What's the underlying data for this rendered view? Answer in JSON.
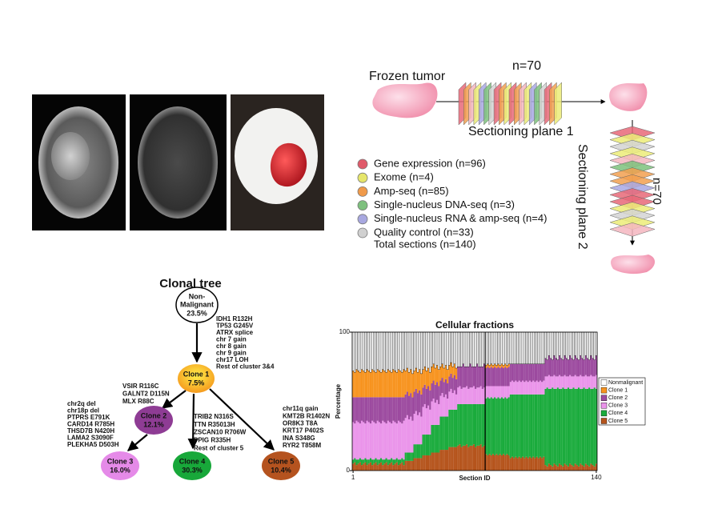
{
  "schematic": {
    "frozen_tumor": "Frozen tumor",
    "n_plane1": "n=70",
    "plane1": "Sectioning plane 1",
    "plane2": "Sectioning plane 2",
    "n_plane2": "n=70",
    "legend": [
      "Gene expression (n=96)",
      "Exome (n=4)",
      "Amp-seq (n=85)",
      "Single-nucleus DNA-seq (n=3)",
      "Single-nucleus RNA & amp-seq (n=4)",
      "Quality control (n=33)"
    ],
    "total": "Total sections (n=140)"
  },
  "clonal_tree": {
    "title": "Clonal tree",
    "nodes": [
      {
        "lines": [
          "Non-",
          "Malignant"
        ],
        "fraction": "23.5%"
      },
      {
        "lines": [
          "Clone 1"
        ],
        "fraction": "7.5%"
      },
      {
        "lines": [
          "Clone 2"
        ],
        "fraction": "12.1%"
      },
      {
        "lines": [
          "Clone 3"
        ],
        "fraction": "16.0%"
      },
      {
        "lines": [
          "Clone 4"
        ],
        "fraction": "30.3%"
      },
      {
        "lines": [
          "Clone 5"
        ],
        "fraction": "10.4%"
      }
    ],
    "mutations": [
      [
        "IDH1 R132H",
        "TP53 G245V",
        "ATRX splice",
        "chr 7 gain",
        "chr 8 gain",
        "chr 9 gain",
        "chr17 LOH",
        "Rest of cluster 3&4"
      ],
      [
        "VSIR R116C",
        "GALNT2 D115N",
        "MLX R88C"
      ],
      [
        "chr2q del",
        "chr18p del",
        "PTPRS E791K",
        "CARD14 R785H",
        "THSD7B N420H",
        "LAMA2 S3090F",
        "PLEKHA5 D503H"
      ],
      [
        "TRIB2 N316S",
        "TTN R35013H",
        "ZSCAN10 R706W",
        "PPIG R335H",
        "Rest of cluster 5"
      ],
      [
        "chr11q gain",
        "KMT2B R1402N",
        "OR8K3 T8A",
        "KRT17 P402S",
        "INA S348G",
        "RYR2 T858M"
      ]
    ]
  },
  "chart_data": {
    "type": "stacked_bar",
    "title": "Cellular fractions",
    "x_label": "Section ID",
    "y_label": "Percentage",
    "xlim": [
      0.5,
      140.5
    ],
    "xticks": [
      1,
      140
    ],
    "ylim": [
      0,
      100
    ],
    "yticks": [
      0,
      100
    ],
    "vline": 76.5,
    "x": [
      1,
      2,
      3,
      4,
      5,
      6,
      7,
      8,
      9,
      10,
      11,
      12,
      13,
      14,
      15,
      16,
      17,
      18,
      19,
      20,
      21,
      22,
      23,
      24,
      25,
      26,
      27,
      28,
      29,
      30,
      31,
      32,
      33,
      34,
      35,
      36,
      37,
      38,
      39,
      40,
      41,
      42,
      43,
      44,
      45,
      46,
      47,
      48,
      49,
      50,
      51,
      52,
      53,
      54,
      55,
      56,
      57,
      58,
      59,
      60,
      61,
      62,
      63,
      64,
      65,
      66,
      67,
      68,
      69,
      70,
      71,
      72,
      73,
      74,
      75,
      76,
      77,
      78,
      79,
      80,
      81,
      82,
      83,
      84,
      85,
      86,
      87,
      88,
      89,
      90,
      91,
      92,
      93,
      94,
      95,
      96,
      97,
      98,
      99,
      100,
      101,
      102,
      103,
      104,
      105,
      106,
      107,
      108,
      109,
      110,
      111,
      112,
      113,
      114,
      115,
      116,
      117,
      118,
      119,
      120,
      121,
      122,
      123,
      124,
      125,
      126,
      127,
      128,
      129,
      130,
      131,
      132,
      133,
      134,
      135,
      136,
      137,
      138,
      139,
      140
    ],
    "series": [
      {
        "name": "Nonmalignant",
        "color": "#ffffff",
        "values": [
          28,
          29,
          27,
          28,
          29,
          27,
          28,
          29,
          27,
          28,
          29,
          27,
          28,
          29,
          27,
          28,
          29,
          27,
          28,
          29,
          27,
          28,
          29,
          27,
          28,
          29,
          27,
          28,
          29,
          27,
          28,
          26,
          29,
          27,
          30,
          28,
          26,
          29,
          27,
          30,
          27,
          25,
          28,
          26,
          29,
          25,
          23,
          26,
          24,
          27,
          25,
          23,
          26,
          24,
          27,
          24,
          22,
          25,
          23,
          26,
          25,
          25,
          25,
          23,
          25,
          25,
          25,
          23,
          25,
          25,
          25,
          23,
          25,
          25,
          25,
          23,
          24,
          23,
          24,
          23,
          24,
          23,
          24,
          23,
          24,
          23,
          24,
          23,
          24,
          23,
          23,
          23,
          23,
          23,
          23,
          23,
          23,
          23,
          23,
          23,
          23,
          23,
          23,
          23,
          23,
          23,
          23,
          23,
          23,
          23,
          19,
          20,
          17,
          19,
          20,
          17,
          19,
          20,
          17,
          19,
          20,
          17,
          19,
          20,
          17,
          19,
          20,
          17,
          19,
          20,
          17,
          19,
          20,
          17,
          19,
          20,
          17,
          19,
          20,
          17
        ]
      },
      {
        "name": "Clone 1",
        "color": "#f7931e",
        "values": [
          19,
          18,
          20,
          19,
          18,
          20,
          19,
          18,
          20,
          19,
          18,
          20,
          19,
          18,
          20,
          19,
          18,
          20,
          19,
          18,
          20,
          19,
          18,
          20,
          19,
          18,
          20,
          19,
          18,
          20,
          17,
          17,
          17,
          17,
          17,
          15,
          15,
          15,
          15,
          15,
          13,
          13,
          13,
          13,
          13,
          12,
          12,
          12,
          12,
          12,
          10,
          10,
          10,
          10,
          10,
          8,
          8,
          8,
          8,
          8,
          0,
          0,
          0,
          0,
          0,
          0,
          0,
          0,
          0,
          0,
          0,
          0,
          0,
          0,
          0,
          0,
          2,
          2,
          2,
          2,
          2,
          2,
          2,
          2,
          2,
          2,
          2,
          2,
          2,
          2,
          0,
          0,
          0,
          0,
          0,
          0,
          0,
          0,
          0,
          0,
          0,
          0,
          0,
          0,
          0,
          0,
          0,
          0,
          0,
          0,
          0,
          0,
          0,
          0,
          0,
          0,
          0,
          0,
          0,
          0,
          0,
          0,
          0,
          0,
          0,
          0,
          0,
          0,
          0,
          0,
          0,
          0,
          0,
          0,
          0,
          0,
          0,
          0,
          0,
          0
        ]
      },
      {
        "name": "Clone 2",
        "color": "#9c4a9f",
        "values": [
          18,
          19,
          17,
          18,
          19,
          17,
          18,
          19,
          17,
          18,
          19,
          17,
          18,
          19,
          17,
          18,
          19,
          17,
          18,
          19,
          17,
          18,
          19,
          17,
          18,
          19,
          17,
          18,
          19,
          17,
          17,
          17,
          17,
          17,
          17,
          16,
          16,
          16,
          16,
          16,
          14,
          14,
          14,
          14,
          14,
          13,
          13,
          13,
          13,
          13,
          11,
          11,
          11,
          11,
          11,
          11,
          11,
          11,
          11,
          11,
          15,
          14,
          16,
          17,
          15,
          14,
          16,
          17,
          15,
          14,
          16,
          17,
          15,
          14,
          16,
          17,
          13,
          14,
          13,
          14,
          13,
          14,
          13,
          14,
          13,
          14,
          13,
          14,
          13,
          14,
          13,
          12,
          13,
          12,
          13,
          12,
          13,
          12,
          13,
          12,
          13,
          12,
          13,
          12,
          13,
          12,
          13,
          12,
          13,
          12,
          13,
          12,
          14,
          13,
          12,
          14,
          13,
          12,
          14,
          13,
          12,
          14,
          13,
          12,
          14,
          13,
          12,
          14,
          13,
          12,
          14,
          13,
          12,
          14,
          13,
          12,
          14,
          13,
          12,
          14
        ]
      },
      {
        "name": "Clone 3",
        "color": "#ea94ea",
        "values": [
          27,
          25,
          28,
          27,
          25,
          28,
          27,
          25,
          28,
          27,
          25,
          28,
          27,
          25,
          28,
          27,
          25,
          28,
          27,
          25,
          28,
          27,
          25,
          28,
          27,
          25,
          28,
          27,
          25,
          28,
          25,
          27,
          24,
          26,
          23,
          22,
          24,
          21,
          23,
          20,
          20,
          22,
          19,
          21,
          18,
          17,
          19,
          16,
          18,
          15,
          15,
          17,
          14,
          16,
          13,
          13,
          15,
          12,
          14,
          11,
          12,
          13,
          11,
          12,
          12,
          13,
          11,
          12,
          12,
          13,
          11,
          12,
          12,
          13,
          11,
          12,
          9,
          8,
          9,
          8,
          9,
          8,
          9,
          8,
          9,
          8,
          9,
          8,
          9,
          8,
          9,
          10,
          9,
          10,
          9,
          10,
          9,
          10,
          9,
          10,
          9,
          10,
          9,
          10,
          9,
          10,
          9,
          10,
          9,
          10,
          9,
          8,
          10,
          9,
          8,
          10,
          9,
          8,
          10,
          9,
          8,
          10,
          9,
          8,
          10,
          9,
          8,
          10,
          9,
          8,
          10,
          9,
          8,
          10,
          9,
          8,
          10,
          9,
          8,
          10
        ]
      },
      {
        "name": "Clone 4",
        "color": "#1aab3c",
        "values": [
          3,
          3,
          4,
          3,
          3,
          4,
          3,
          3,
          4,
          3,
          3,
          4,
          3,
          3,
          4,
          3,
          3,
          4,
          3,
          3,
          4,
          3,
          3,
          4,
          3,
          3,
          4,
          3,
          3,
          4,
          6,
          6,
          6,
          6,
          6,
          10,
          10,
          10,
          10,
          10,
          15,
          15,
          15,
          15,
          15,
          20,
          20,
          20,
          20,
          20,
          24,
          24,
          24,
          24,
          24,
          27,
          27,
          27,
          27,
          27,
          30,
          29,
          31,
          30,
          30,
          29,
          31,
          30,
          30,
          29,
          31,
          30,
          30,
          29,
          31,
          30,
          40,
          42,
          40,
          42,
          40,
          42,
          40,
          42,
          40,
          42,
          40,
          42,
          40,
          42,
          46,
          45,
          46,
          45,
          46,
          45,
          46,
          45,
          46,
          45,
          46,
          45,
          46,
          45,
          46,
          45,
          46,
          45,
          46,
          45,
          55,
          57,
          54,
          55,
          57,
          54,
          55,
          57,
          54,
          55,
          57,
          54,
          55,
          57,
          54,
          55,
          57,
          54,
          55,
          57,
          54,
          55,
          57,
          54,
          55,
          57,
          54,
          55,
          57,
          54
        ]
      },
      {
        "name": "Clone 5",
        "color": "#b5541c",
        "values": [
          5,
          6,
          4,
          5,
          6,
          4,
          5,
          6,
          4,
          5,
          6,
          4,
          5,
          6,
          4,
          5,
          6,
          4,
          5,
          6,
          4,
          5,
          6,
          4,
          5,
          6,
          4,
          5,
          6,
          4,
          7,
          7,
          7,
          7,
          7,
          9,
          9,
          9,
          9,
          9,
          11,
          11,
          11,
          11,
          11,
          13,
          13,
          13,
          13,
          13,
          15,
          15,
          15,
          15,
          15,
          17,
          17,
          17,
          17,
          17,
          18,
          19,
          17,
          18,
          18,
          19,
          17,
          18,
          18,
          19,
          17,
          18,
          18,
          19,
          17,
          18,
          12,
          11,
          12,
          11,
          12,
          11,
          12,
          11,
          12,
          11,
          12,
          11,
          12,
          11,
          9,
          10,
          9,
          10,
          9,
          10,
          9,
          10,
          9,
          10,
          9,
          10,
          9,
          10,
          9,
          10,
          9,
          10,
          9,
          10,
          4,
          3,
          5,
          4,
          3,
          5,
          4,
          3,
          5,
          4,
          3,
          5,
          4,
          3,
          5,
          4,
          3,
          5,
          4,
          3,
          5,
          4,
          3,
          5,
          4,
          3,
          5,
          4,
          3,
          5
        ]
      }
    ]
  }
}
